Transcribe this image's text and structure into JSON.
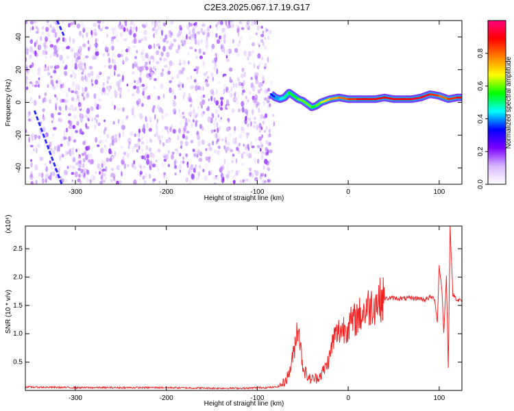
{
  "chart_data": [
    {
      "type": "heatmap",
      "title": "C2E3.2025.067.17.19.G17",
      "xlabel": "Height of straight line (km)",
      "ylabel": "Frequency (Hz)",
      "xlim": [
        -355,
        125
      ],
      "ylim": [
        -50,
        50
      ],
      "xticks": [
        "-300",
        "-200",
        "-100",
        "0",
        "100"
      ],
      "yticks": [
        "-40",
        "-20",
        "0",
        "20",
        "40"
      ],
      "grid": false,
      "colorbar": {
        "label": "Normalized spectral amplitude",
        "range": [
          0.0,
          1.0
        ],
        "ticks": [
          "0.0",
          "0.2",
          "0.4",
          "0.6",
          "0.8"
        ],
        "colors": [
          "#ffffff",
          "#d8b8ff",
          "#7b00ff",
          "#0000ff",
          "#00ffff",
          "#00ff00",
          "#ffff00",
          "#ff8000",
          "#ff0000",
          "#ff0080"
        ]
      },
      "noise_region": {
        "x_from": -355,
        "x_to": -85,
        "amplitude": 0.15
      },
      "signal_track": {
        "x": [
          -85,
          -80,
          -75,
          -70,
          -65,
          -60,
          -55,
          -50,
          -45,
          -40,
          -35,
          -30,
          -25,
          -20,
          -10,
          0,
          10,
          20,
          30,
          40,
          50,
          60,
          70,
          80,
          90,
          100,
          110,
          120,
          125
        ],
        "freq": [
          5,
          3,
          2,
          3,
          6,
          4,
          2,
          1,
          -1,
          -3,
          -2,
          0,
          1,
          2,
          3,
          2,
          2,
          2,
          2,
          3,
          2,
          2,
          2,
          3,
          5,
          4,
          2,
          3,
          3
        ],
        "amplitude": [
          0.3,
          0.4,
          0.45,
          0.5,
          0.55,
          0.55,
          0.6,
          0.6,
          0.6,
          0.55,
          0.6,
          0.65,
          0.7,
          0.75,
          0.8,
          0.85,
          0.9,
          0.9,
          0.9,
          0.9,
          0.9,
          0.9,
          0.92,
          0.92,
          0.85,
          0.8,
          0.85,
          0.9,
          0.9
        ]
      },
      "diagonal_streaks": [
        {
          "x": [
            -345,
            -315
          ],
          "freq": [
            -5,
            -50
          ],
          "amplitude": 0.3
        },
        {
          "x": [
            -320,
            -312
          ],
          "freq": [
            50,
            40
          ],
          "amplitude": 0.3
        }
      ]
    },
    {
      "type": "line",
      "title": "",
      "xlabel": "Height of straight line (km)",
      "ylabel": "SNR (10 * v/v)",
      "multiplier_label": "(x10⁴)",
      "xlim": [
        -355,
        125
      ],
      "ylim": [
        0,
        2.9
      ],
      "xticks": [
        "-300",
        "-200",
        "-100",
        "0",
        "100"
      ],
      "yticks": [
        "0.5",
        "1.0",
        "1.5",
        "2.0",
        "2.5"
      ],
      "grid": false,
      "series": [
        {
          "color": "#ee2222",
          "x": [
            -355,
            -300,
            -250,
            -200,
            -150,
            -110,
            -100,
            -90,
            -80,
            -75,
            -70,
            -65,
            -60,
            -58,
            -55,
            -52,
            -50,
            -48,
            -45,
            -42,
            -40,
            -35,
            -30,
            -25,
            -20,
            -18,
            -15,
            -12,
            -10,
            -5,
            0,
            5,
            10,
            15,
            20,
            25,
            30,
            35,
            40,
            50,
            60,
            70,
            80,
            85,
            90,
            95,
            98,
            100,
            103,
            105,
            108,
            110,
            112,
            115,
            120,
            125
          ],
          "y": [
            0.06,
            0.05,
            0.05,
            0.05,
            0.04,
            0.04,
            0.05,
            0.05,
            0.06,
            0.08,
            0.15,
            0.3,
            0.65,
            0.9,
            1.2,
            0.7,
            0.45,
            0.35,
            0.25,
            0.2,
            0.2,
            0.22,
            0.28,
            0.4,
            0.6,
            0.8,
            0.95,
            1.0,
            1.05,
            1.1,
            1.15,
            1.2,
            1.3,
            1.35,
            1.45,
            1.5,
            1.55,
            1.6,
            1.62,
            1.63,
            1.62,
            1.63,
            1.62,
            1.6,
            1.65,
            1.62,
            1.2,
            2.2,
            1.8,
            1.0,
            2.0,
            0.4,
            2.9,
            1.7,
            1.6,
            1.58
          ]
        }
      ]
    }
  ]
}
